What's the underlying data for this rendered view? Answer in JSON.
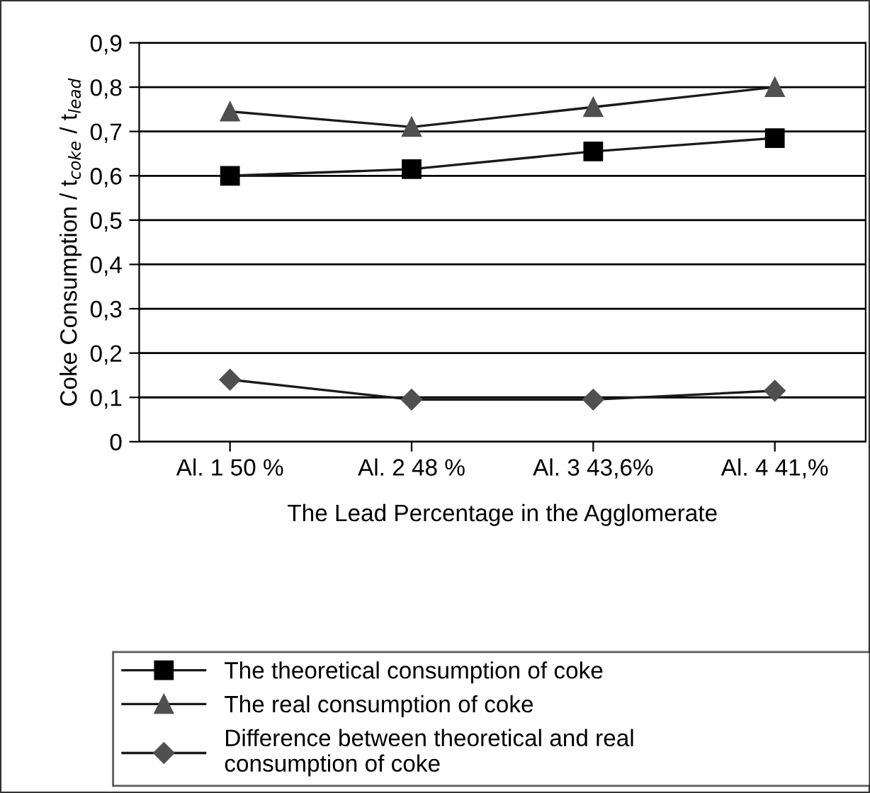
{
  "chart_data": {
    "type": "line",
    "xlabel": "The Lead Percentage in the Agglomerate",
    "ylabel": "Coke Consumption / t$_{coke}$ / t$_{lead}$",
    "categories": [
      "Al. 1 50 %",
      "Al. 2 48 %",
      "Al. 3 43,6%",
      "Al. 4 41,%"
    ],
    "series": [
      {
        "name": "The theoretical consumption of coke",
        "color": "#000000",
        "marker": "square",
        "values": [
          0.6,
          0.615,
          0.655,
          0.685
        ]
      },
      {
        "name": "The real consumption of coke",
        "color": "#505050",
        "marker": "triangle",
        "values": [
          0.745,
          0.71,
          0.755,
          0.8
        ]
      },
      {
        "name": "Difference between theoretical and real\nconsumption of coke",
        "color": "#505050",
        "marker": "diamond",
        "values": [
          0.14,
          0.095,
          0.095,
          0.115
        ]
      }
    ],
    "ylim": [
      0,
      0.9
    ],
    "yticks": [
      0,
      {
        "value": 0.1,
        "label": "0,1"
      },
      {
        "value": 0.2,
        "label": "0,2"
      },
      {
        "value": 0.3,
        "label": "0,3"
      },
      {
        "value": 0.4,
        "label": "0,4"
      },
      {
        "value": 0.5,
        "label": "0,5"
      },
      {
        "value": 0.6,
        "label": "0,6"
      },
      {
        "value": 0.7,
        "label": "0,7"
      },
      {
        "value": 0.8,
        "label": "0,8"
      },
      {
        "value": 0.9,
        "label": "0,9"
      }
    ],
    "grid": "y",
    "legend": "bottom",
    "line_style": "solid"
  }
}
